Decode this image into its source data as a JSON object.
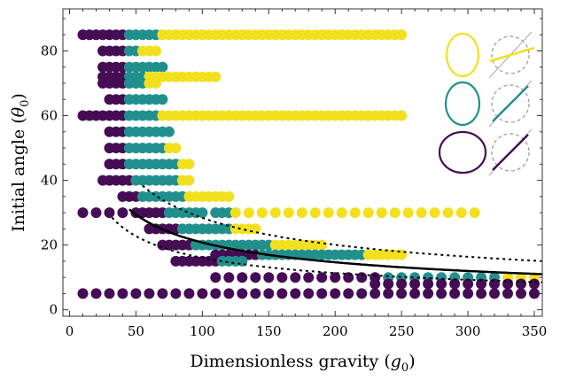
{
  "chart_data": {
    "type": "scatter",
    "title": "",
    "xlabel": {
      "prefix": "Dimensionless gravity (",
      "symbol": "g",
      "sub": "0",
      "suffix": ")"
    },
    "ylabel": {
      "prefix": "Initial angle (",
      "symbol": "θ",
      "sub": "0",
      "suffix": ")"
    },
    "xlim": [
      -5,
      356
    ],
    "ylim": [
      -2,
      93
    ],
    "x_ticks": [
      0,
      50,
      100,
      150,
      200,
      250,
      300,
      350
    ],
    "y_ticks": [
      0,
      20,
      40,
      60,
      80
    ],
    "grid": false,
    "colors": {
      "purple": "#440d54",
      "teal": "#21908d",
      "yellow": "#f2e01f",
      "frame": "#333333"
    },
    "dot_rows": [
      {
        "y": 85,
        "runs": [
          [
            "purple",
            10,
            40,
            5
          ],
          [
            "teal",
            45,
            65,
            5
          ],
          [
            "yellow",
            70,
            250,
            5
          ]
        ]
      },
      {
        "y": 80,
        "runs": [
          [
            "purple",
            25,
            40,
            5
          ],
          [
            "teal",
            45,
            50,
            5
          ],
          [
            "yellow",
            55,
            65,
            5
          ]
        ]
      },
      {
        "y": 75,
        "runs": [
          [
            "purple",
            25,
            40,
            5
          ],
          [
            "teal",
            45,
            70,
            5
          ]
        ]
      },
      {
        "y": 72,
        "runs": [
          [
            "purple",
            25,
            40,
            5
          ],
          [
            "teal",
            45,
            55,
            5
          ],
          [
            "yellow",
            60,
            110,
            5
          ]
        ]
      },
      {
        "y": 70,
        "runs": [
          [
            "purple",
            25,
            40,
            5
          ],
          [
            "teal",
            45,
            55,
            5
          ],
          [
            "yellow",
            60,
            65,
            5
          ]
        ]
      },
      {
        "y": 65,
        "runs": [
          [
            "purple",
            30,
            40,
            5
          ],
          [
            "teal",
            45,
            70,
            5
          ]
        ]
      },
      {
        "y": 60,
        "runs": [
          [
            "purple",
            10,
            40,
            5
          ],
          [
            "teal",
            45,
            65,
            5
          ],
          [
            "yellow",
            70,
            250,
            5
          ]
        ]
      },
      {
        "y": 55,
        "runs": [
          [
            "purple",
            30,
            40,
            5
          ],
          [
            "teal",
            45,
            75,
            5
          ]
        ]
      },
      {
        "y": 50,
        "runs": [
          [
            "purple",
            30,
            40,
            5
          ],
          [
            "teal",
            45,
            70,
            5
          ],
          [
            "yellow",
            75,
            80,
            5
          ]
        ]
      },
      {
        "y": 45,
        "runs": [
          [
            "purple",
            30,
            40,
            5
          ],
          [
            "teal",
            45,
            80,
            5
          ],
          [
            "yellow",
            85,
            90,
            5
          ]
        ]
      },
      {
        "y": 40,
        "runs": [
          [
            "purple",
            25,
            45,
            5
          ],
          [
            "teal",
            50,
            80,
            5
          ],
          [
            "yellow",
            85,
            90,
            5
          ]
        ]
      },
      {
        "y": 35,
        "runs": [
          [
            "purple",
            40,
            50,
            5
          ],
          [
            "teal",
            55,
            85,
            5
          ],
          [
            "yellow",
            90,
            120,
            5
          ]
        ]
      },
      {
        "y": 30,
        "runs": [
          [
            "purple",
            10,
            50,
            10
          ],
          [
            "purple",
            55,
            70,
            5
          ],
          [
            "teal",
            75,
            100,
            5
          ],
          [
            "teal",
            110,
            120,
            5
          ],
          [
            "yellow",
            125,
            310,
            10
          ]
        ]
      },
      {
        "y": 25,
        "runs": [
          [
            "purple",
            60,
            80,
            5
          ],
          [
            "teal",
            85,
            120,
            5
          ],
          [
            "yellow",
            125,
            140,
            5
          ]
        ]
      },
      {
        "y": 20,
        "runs": [
          [
            "purple",
            70,
            90,
            5
          ],
          [
            "teal",
            95,
            150,
            5
          ],
          [
            "yellow",
            155,
            190,
            5
          ]
        ]
      },
      {
        "y": 17,
        "runs": [
          [
            "purple",
            110,
            140,
            5
          ],
          [
            "teal",
            145,
            220,
            5
          ],
          [
            "yellow",
            225,
            250,
            5
          ]
        ]
      },
      {
        "y": 15,
        "runs": [
          [
            "purple",
            80,
            110,
            5
          ],
          [
            "teal",
            115,
            130,
            5
          ]
        ]
      },
      {
        "y": 10,
        "runs": [
          [
            "purple",
            110,
            230,
            10
          ],
          [
            "teal",
            240,
            320,
            10
          ],
          [
            "yellow",
            330,
            350,
            10
          ]
        ]
      },
      {
        "y": 8,
        "runs": [
          [
            "purple",
            230,
            350,
            10
          ]
        ]
      },
      {
        "y": 5,
        "runs": [
          [
            "purple",
            10,
            350,
            10
          ]
        ]
      }
    ],
    "curves": [
      {
        "name": "",
        "style": "solid",
        "k": 3.62,
        "gmin": 45
      },
      {
        "name": "",
        "style": "dashed",
        "k": 2.8,
        "gmin": 32
      },
      {
        "name": "",
        "style": "dashed",
        "k": 4.95,
        "gmin": 55
      }
    ],
    "inset_legend": [
      {
        "color": "yellow",
        "ellipse": "tall",
        "line": "shallow"
      },
      {
        "color": "teal",
        "ellipse": "tall-round",
        "line": "diagonal"
      },
      {
        "color": "purple",
        "ellipse": "wide",
        "line": "diagonal"
      }
    ]
  }
}
